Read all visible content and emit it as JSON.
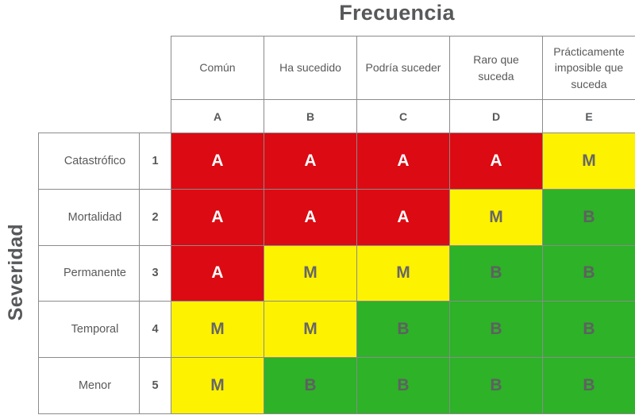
{
  "title": "Frecuencia",
  "side_label": "Severidad",
  "levels": {
    "high": {
      "bg": "#dc0a12",
      "text": "#ffffff"
    },
    "medium": {
      "bg": "#fdf200",
      "text": "#666667"
    },
    "low": {
      "bg": "#2db228",
      "text": "#5f6061"
    }
  },
  "columns": [
    {
      "label": "Común",
      "letter": "A"
    },
    {
      "label": "Ha sucedido",
      "letter": "B"
    },
    {
      "label": "Podría suceder",
      "letter": "C"
    },
    {
      "label": "Raro que suceda",
      "letter": "D"
    },
    {
      "label": "Prácticamente imposible que suceda",
      "letter": "E"
    }
  ],
  "rows": [
    {
      "label": "Catastrófico",
      "number": "1",
      "cells": [
        {
          "letter": "A",
          "level": "high"
        },
        {
          "letter": "A",
          "level": "high"
        },
        {
          "letter": "A",
          "level": "high"
        },
        {
          "letter": "A",
          "level": "high"
        },
        {
          "letter": "M",
          "level": "medium"
        }
      ]
    },
    {
      "label": "Mortalidad",
      "number": "2",
      "cells": [
        {
          "letter": "A",
          "level": "high"
        },
        {
          "letter": "A",
          "level": "high"
        },
        {
          "letter": "A",
          "level": "high"
        },
        {
          "letter": "M",
          "level": "medium"
        },
        {
          "letter": "B",
          "level": "low"
        }
      ]
    },
    {
      "label": "Permanente",
      "number": "3",
      "cells": [
        {
          "letter": "A",
          "level": "high"
        },
        {
          "letter": "M",
          "level": "medium"
        },
        {
          "letter": "M",
          "level": "medium"
        },
        {
          "letter": "B",
          "level": "low"
        },
        {
          "letter": "B",
          "level": "low"
        }
      ]
    },
    {
      "label": "Temporal",
      "number": "4",
      "cells": [
        {
          "letter": "M",
          "level": "medium"
        },
        {
          "letter": "M",
          "level": "medium"
        },
        {
          "letter": "B",
          "level": "low"
        },
        {
          "letter": "B",
          "level": "low"
        },
        {
          "letter": "B",
          "level": "low"
        }
      ]
    },
    {
      "label": "Menor",
      "number": "5",
      "cells": [
        {
          "letter": "M",
          "level": "medium"
        },
        {
          "letter": "B",
          "level": "low"
        },
        {
          "letter": "B",
          "level": "low"
        },
        {
          "letter": "B",
          "level": "low"
        },
        {
          "letter": "B",
          "level": "low"
        }
      ]
    }
  ]
}
